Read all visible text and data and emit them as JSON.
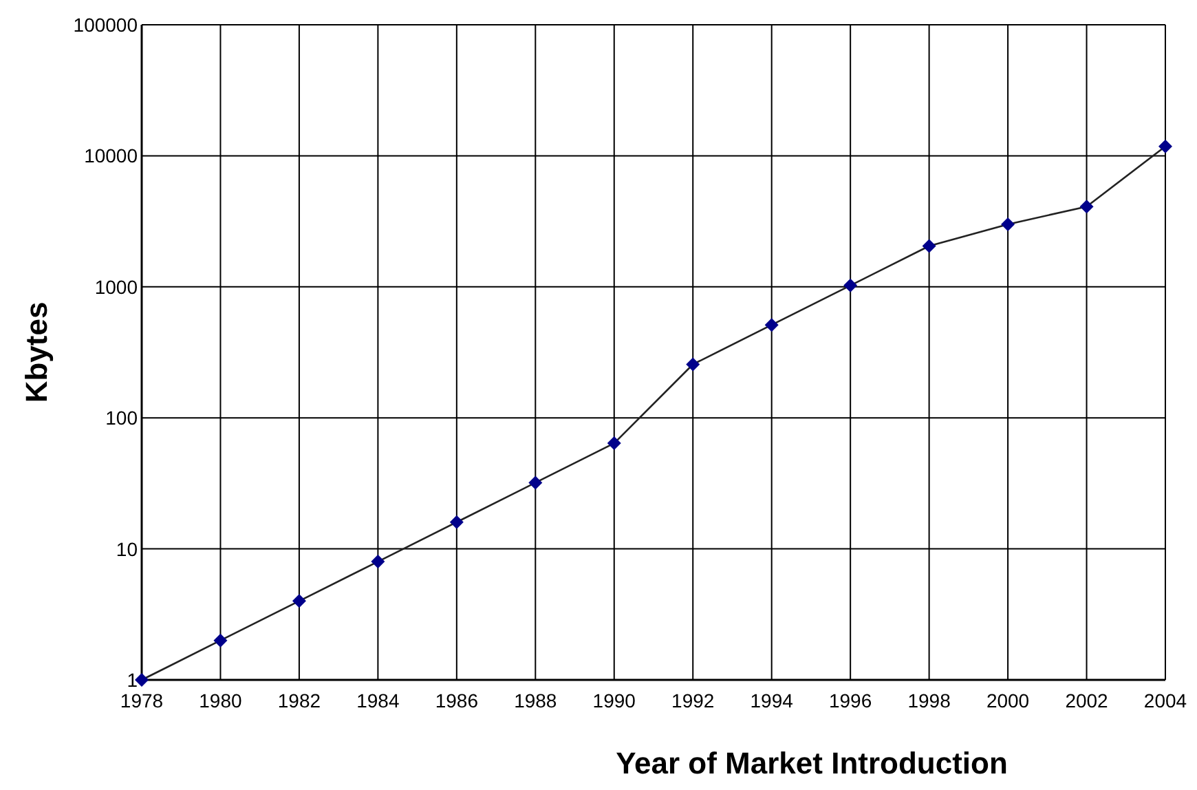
{
  "chart_data": {
    "type": "line",
    "xlabel": "Year of Market Introduction",
    "ylabel": "Kbytes",
    "x": [
      1978,
      1980,
      1982,
      1984,
      1986,
      1988,
      1990,
      1992,
      1994,
      1996,
      1998,
      2000,
      2002,
      2004
    ],
    "series": [
      {
        "color": "#00008b",
        "values": [
          1,
          2,
          4,
          8,
          16,
          32,
          64,
          256,
          512,
          1024,
          2048,
          3000,
          4096,
          11800
        ]
      }
    ],
    "xlim": [
      1978,
      2004
    ],
    "xticks": [
      1978,
      1980,
      1982,
      1984,
      1986,
      1988,
      1990,
      1992,
      1994,
      1996,
      1998,
      2000,
      2002,
      2004
    ],
    "ylim": [
      1,
      100000
    ],
    "yticks": [
      1,
      10,
      100,
      1000,
      10000,
      100000
    ],
    "log": "y",
    "grid": true,
    "marker": "diamond",
    "line_style": "solid"
  }
}
